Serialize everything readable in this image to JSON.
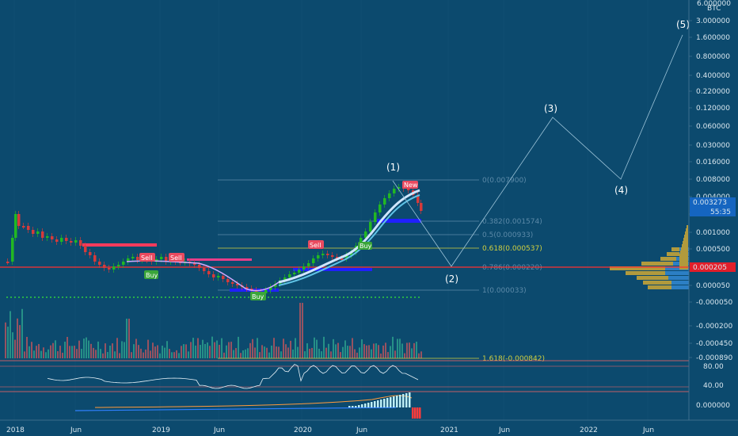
{
  "colors": {
    "background": "#0c4a6e",
    "grid": "#2a5f80",
    "candle_up": "#22b822",
    "candle_down": "#d63a3a",
    "ma_line": "#cfe6ff",
    "ma_fill": "#5fc3e6",
    "fib_line": "#5c8aa8",
    "fib_618": "#d0d040",
    "support_red": "#ff3030",
    "support_blue": "#2020ff",
    "green_dotted": "#2ecc40",
    "wave_line": "#9cc3d8",
    "price_badge_blue": "#1565c0",
    "price_badge_red": "#e21e2a",
    "macd_hist": "#bdeef5",
    "macd_red": "#ff3b3b"
  },
  "chart_data": {
    "type": "candlestick",
    "symbol_unit": "BTC",
    "x_tick_labels": [
      "2018",
      "Jun",
      "2019",
      "Jun",
      "2020",
      "Jun",
      "2021",
      "Jun",
      "2022",
      "Jun"
    ],
    "y_tick_labels": [
      "6.000000",
      "3.000000",
      "1.600000",
      "0.800000",
      "0.400000",
      "0.220000",
      "0.120000",
      "0.060000",
      "0.030000",
      "0.016000",
      "0.008000",
      "0.004000",
      "0.002000",
      "0.001000",
      "0.000500",
      "0.000050",
      "-0.000050",
      "-0.000200",
      "-0.000450",
      "-0.000890"
    ],
    "current_price": "0.003273",
    "countdown": "55:35",
    "support_price": "0.000205",
    "fib_levels": [
      {
        "label": "0(0.007900)",
        "value": 0.0079
      },
      {
        "label": "0.382(0.001574)",
        "value": 0.001574
      },
      {
        "label": "0.5(0.000933)",
        "value": 0.000933
      },
      {
        "label": "0.618(0.000537)",
        "value": 0.000537
      },
      {
        "label": "0.786(0.000220)",
        "value": 0.00022
      },
      {
        "label": "1(0.000033)",
        "value": 3.3e-05
      },
      {
        "label": "1.618(-0.000842)",
        "value": -0.000842
      }
    ],
    "elliott_waves": [
      "(1)",
      "(2)",
      "(3)",
      "(4)",
      "(5)"
    ],
    "signals": [
      "Sell",
      "Sell",
      "Buy",
      "Buy",
      "Sell",
      "Buy",
      "New"
    ],
    "rsi_ticks": [
      "80.00",
      "40.00"
    ],
    "macd_ticks": [
      "0.000000"
    ]
  }
}
